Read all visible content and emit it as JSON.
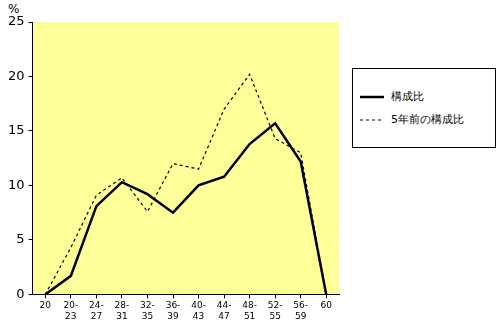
{
  "chart_data": {
    "type": "line",
    "y_label": "%",
    "categories": [
      "20",
      "20-23",
      "24-27",
      "28-31",
      "32-35",
      "36-39",
      "40-43",
      "44-47",
      "48-51",
      "52-55",
      "56-59",
      "60"
    ],
    "series": [
      {
        "name": "構成比",
        "color": "#000000",
        "line_style": "solid",
        "marker": "none",
        "values": [
          0,
          1.7,
          8.1,
          10.3,
          9.2,
          7.5,
          10.0,
          10.8,
          13.8,
          15.7,
          12.2,
          0
        ]
      },
      {
        "name": "5年前の構成比",
        "color": "#000000",
        "line_style": "dotted",
        "marker": "none",
        "values": [
          0,
          4.3,
          9.1,
          10.7,
          7.6,
          12.0,
          11.5,
          17.0,
          20.2,
          14.3,
          13.0,
          0
        ]
      }
    ],
    "ylim": [
      0,
      25
    ],
    "yticks": [
      0,
      5,
      10,
      15,
      20,
      25
    ],
    "grid": false,
    "legend": "right"
  }
}
